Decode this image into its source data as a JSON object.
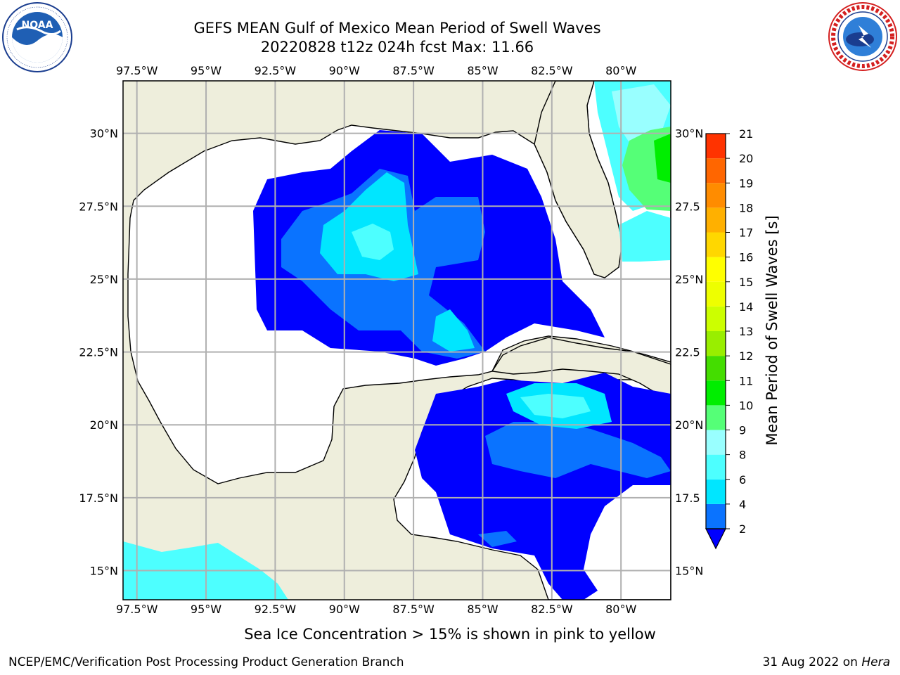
{
  "header": {
    "title_line1": "GEFS MEAN Gulf of Mexico Mean Period of Swell Waves",
    "title_line2": "20220828 t12z 024h fcst   Max: 11.66"
  },
  "logos": {
    "left": {
      "name": "NOAA",
      "ring_text": "NATIONAL OCEANIC AND ATMOSPHERIC ADMINISTRATION · U.S. DEPARTMENT OF COMMERCE"
    },
    "right": {
      "name": "National Weather Service",
      "ring_text": "NATIONAL WEATHER SERVICE"
    }
  },
  "map": {
    "lon_labels": [
      "97.5°W",
      "95°W",
      "92.5°W",
      "90°W",
      "87.5°W",
      "85°W",
      "82.5°W",
      "80°W"
    ],
    "lat_labels": [
      "30°N",
      "27.5°N",
      "25°N",
      "22.5°N",
      "20°N",
      "17.5°N",
      "15°N"
    ],
    "lat_labels_right": [
      "30°N",
      "27.5",
      "25°N",
      "22.5",
      "20°N",
      "17.5",
      "15°N"
    ],
    "extent": {
      "lon": [
        -98.0,
        -78.2
      ],
      "lat": [
        14.0,
        31.8
      ]
    },
    "land_color": "#eeeedc",
    "ocean_color": "#ffffff",
    "grid_color": "#b0b0b0"
  },
  "colorbar": {
    "label": "Mean Period of Swell Waves [s]",
    "ticks": [
      "2",
      "4",
      "6",
      "8",
      "9",
      "10",
      "11",
      "12",
      "13",
      "14",
      "15",
      "16",
      "17",
      "18",
      "19",
      "20",
      "21"
    ],
    "colors": [
      "#0a73ff",
      "#00e6ff",
      "#4dffff",
      "#99ffff",
      "#55ff77",
      "#00ee00",
      "#44dd00",
      "#99ee00",
      "#ccff00",
      "#eeff00",
      "#ffff00",
      "#ffd700",
      "#ffb000",
      "#ff8c00",
      "#ff6600",
      "#ff3300",
      "#ff0000"
    ],
    "extend_color": "#0000ff"
  },
  "note": "Sea Ice Concentration > 15% is shown in pink to yellow",
  "footer": {
    "left": "NCEP/EMC/Verification Post Processing Product Generation Branch",
    "right_date": "31 Aug 2022 on",
    "right_host": "Hera"
  }
}
